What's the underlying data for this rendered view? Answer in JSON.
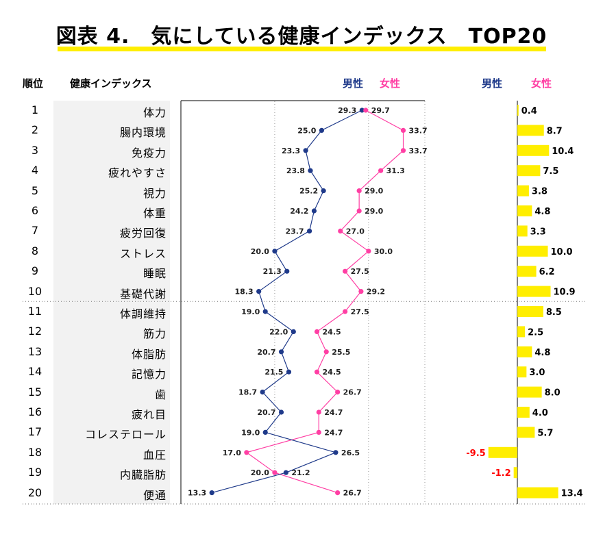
{
  "title": "図表 4.　気にしている健康インデックス　TOP20",
  "header": {
    "rank": "順位",
    "index": "健康インデックス",
    "male": "男性",
    "female": "女性"
  },
  "colors": {
    "male": "#1f3a8a",
    "female": "#ff3fa4",
    "diff_bar": "#ffee00",
    "negative_label": "#ff0000",
    "accent_underline": "#ffee00"
  },
  "chart_data": {
    "type": "line",
    "categories": [
      "体力",
      "腸内環境",
      "免疫力",
      "疲れやすさ",
      "視力",
      "体重",
      "疲労回復",
      "ストレス",
      "睡眠",
      "基礎代謝",
      "体調維持",
      "筋力",
      "体脂肪",
      "記憶力",
      "歯",
      "疲れ目",
      "コレステロール",
      "血圧",
      "内臓脂肪",
      "便通"
    ],
    "ranks": [
      "1",
      "2",
      "3",
      "4",
      "5",
      "6",
      "7",
      "8",
      "9",
      "10",
      "11",
      "12",
      "13",
      "14",
      "15",
      "16",
      "17",
      "18",
      "19",
      "20"
    ],
    "series": [
      {
        "name": "男性",
        "values": [
          29.3,
          25.0,
          23.3,
          23.8,
          25.2,
          24.2,
          23.7,
          20.0,
          21.3,
          18.3,
          19.0,
          22.0,
          20.7,
          21.5,
          18.7,
          20.7,
          19.0,
          26.5,
          21.2,
          13.3
        ]
      },
      {
        "name": "女性",
        "values": [
          29.7,
          33.7,
          33.7,
          31.3,
          29.0,
          29.0,
          27.0,
          30.0,
          27.5,
          29.2,
          27.5,
          24.5,
          25.5,
          24.5,
          26.7,
          24.7,
          24.7,
          17.0,
          20.0,
          26.7
        ]
      }
    ],
    "value_labels": {
      "male": [
        "29.3",
        "25.0",
        "23.3",
        "23.8",
        "25.2",
        "24.2",
        "23.7",
        "20.0",
        "21.3",
        "18.3",
        "19.0",
        "22.0",
        "20.7",
        "21.5",
        "18.7",
        "20.7",
        "19.0",
        "26.5",
        "21.2",
        "13.3"
      ],
      "female": [
        "29.7",
        "33.7",
        "33.7",
        "31.3",
        "29.0",
        "29.0",
        "27.0",
        "30.0",
        "27.5",
        "29.2",
        "27.5",
        "24.5",
        "25.5",
        "24.5",
        "26.7",
        "24.7",
        "24.7",
        "17.0",
        "20.0",
        "26.7"
      ]
    },
    "difference": {
      "values": [
        0.4,
        8.7,
        10.4,
        7.5,
        3.8,
        4.8,
        3.3,
        10.0,
        6.2,
        10.9,
        8.5,
        2.5,
        4.8,
        3.0,
        8.0,
        4.0,
        5.7,
        -9.5,
        -1.2,
        13.4
      ],
      "labels": [
        "0.4",
        "8.7",
        "10.4",
        "7.5",
        "3.8",
        "4.8",
        "3.3",
        "10.0",
        "6.2",
        "10.9",
        "8.5",
        "2.5",
        "4.8",
        "3.0",
        "8.0",
        "4.0",
        "5.7",
        "-9.5",
        "-1.2",
        "13.4"
      ]
    },
    "xlim": [
      10,
      36
    ],
    "grid": "vertical dotted",
    "divider_after_rank": 10
  }
}
